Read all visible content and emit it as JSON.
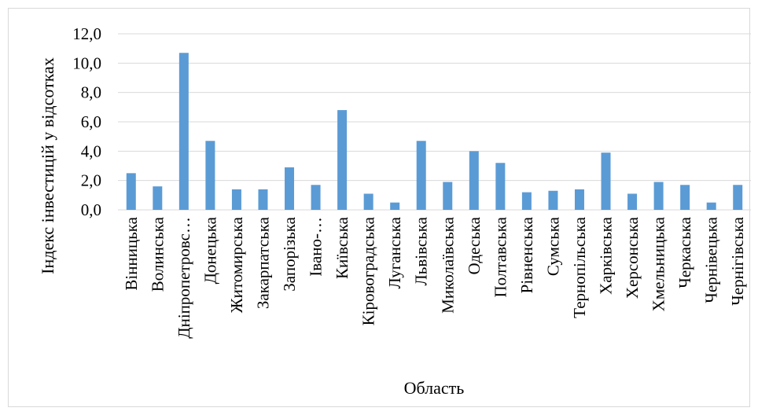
{
  "chart_data": {
    "type": "bar",
    "title": "",
    "xlabel": "Область",
    "ylabel": "Індекс інвестицій у відсотках",
    "ylim": [
      0,
      12
    ],
    "yticks": [
      "0,0",
      "2,0",
      "4,0",
      "6,0",
      "8,0",
      "10,0",
      "12,0"
    ],
    "grid": true,
    "legend": "none",
    "bar_color": "#5b9bd5",
    "grid_color": "#d9d9d9",
    "categories": [
      "Вінницька",
      "Волинська",
      "Дніпропетровс…",
      "Донецька",
      "Житомирська",
      "Закарпатська",
      "Запорізька",
      "Івано-…",
      "Київська",
      "Кіровоградська",
      "Луганська",
      "Львівська",
      "Миколаївська",
      "Одеська",
      "Полтавська",
      "Рівненська",
      "Сумська",
      "Тернопільська",
      "Харківська",
      "Херсонська",
      "Хмельницька",
      "Черкаська",
      "Чернівецька",
      "Чернігівська"
    ],
    "values": [
      2.5,
      1.6,
      10.7,
      4.7,
      1.4,
      1.4,
      2.9,
      1.7,
      6.8,
      1.1,
      0.5,
      4.7,
      1.9,
      4.0,
      3.2,
      1.2,
      1.3,
      1.4,
      3.9,
      1.1,
      1.9,
      1.7,
      0.5,
      1.7
    ]
  }
}
